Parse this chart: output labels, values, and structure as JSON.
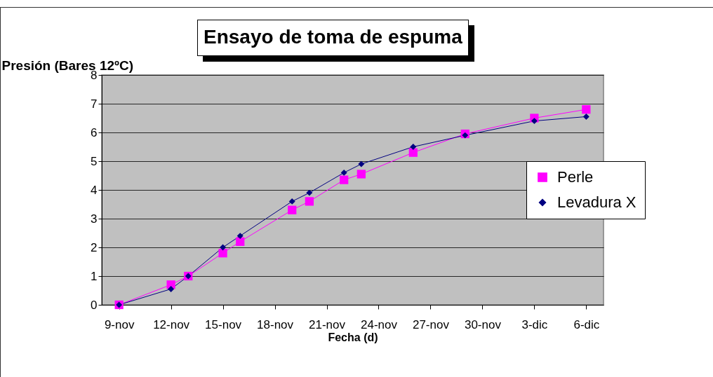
{
  "chart_data": {
    "type": "line",
    "title": "Ensayo de toma de espuma",
    "xlabel": "Fecha (d)",
    "ylabel": "Presión (Bares 12ºC)",
    "series": [
      {
        "name": "Perle",
        "color": "#ff00ff",
        "marker": "square",
        "x": [
          "--11-09",
          "--11-12",
          "--11-13",
          "--11-15",
          "--11-16",
          "--11-19",
          "--11-20",
          "--11-22",
          "--11-23",
          "--11-26",
          "--11-29",
          "--12-03",
          "--12-06"
        ],
        "values": [
          0,
          0.7,
          1.0,
          1.8,
          2.2,
          3.3,
          3.6,
          4.35,
          4.55,
          5.3,
          5.95,
          6.5,
          6.8
        ]
      },
      {
        "name": "Levadura X",
        "color": "#000080",
        "marker": "diamond",
        "x": [
          "--11-09",
          "--11-12",
          "--11-13",
          "--11-15",
          "--11-16",
          "--11-19",
          "--11-20",
          "--11-22",
          "--11-23",
          "--11-26",
          "--11-29",
          "--12-03",
          "--12-06"
        ],
        "values": [
          0,
          0.55,
          1.0,
          2.0,
          2.4,
          3.6,
          3.9,
          4.6,
          4.9,
          5.5,
          5.9,
          6.4,
          6.55
        ]
      }
    ],
    "xlim": [
      "--11-08",
      "--12-07"
    ],
    "xticks": [
      {
        "value": "--11-09",
        "label": "9-nov"
      },
      {
        "value": "--11-12",
        "label": "12-nov"
      },
      {
        "value": "--11-15",
        "label": "15-nov"
      },
      {
        "value": "--11-18",
        "label": "18-nov"
      },
      {
        "value": "--11-21",
        "label": "21-nov"
      },
      {
        "value": "--11-24",
        "label": "24-nov"
      },
      {
        "value": "--11-27",
        "label": "27-nov"
      },
      {
        "value": "--11-30",
        "label": "30-nov"
      },
      {
        "value": "--12-03",
        "label": "3-dic"
      },
      {
        "value": "--12-06",
        "label": "6-dic"
      }
    ],
    "ylim": [
      0,
      8
    ],
    "yticks": [
      0,
      1,
      2,
      3,
      4,
      5,
      6,
      7,
      8
    ],
    "grid": "y",
    "legend": "right",
    "line_style": "solid"
  }
}
